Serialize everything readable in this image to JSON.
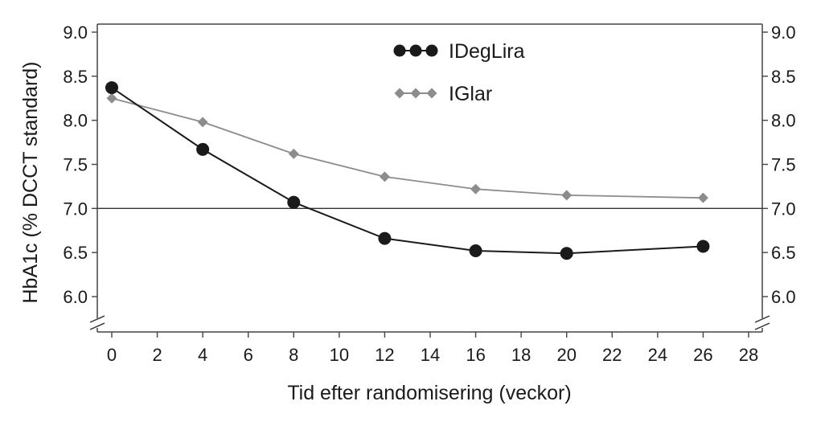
{
  "chart_data": {
    "type": "line",
    "title": "",
    "xlabel": "Tid efter randomisering (veckor)",
    "ylabel": "HbA1c (% DCCT standard)",
    "xlim": [
      0,
      28
    ],
    "ylim": [
      5.5,
      9.0
    ],
    "x_ticks": [
      0,
      2,
      4,
      6,
      8,
      10,
      12,
      14,
      16,
      18,
      20,
      22,
      24,
      26,
      28
    ],
    "x_tick_labels": [
      "0",
      "2",
      "4",
      "6",
      "8",
      "10",
      "12",
      "14",
      "16",
      "18",
      "20",
      "22",
      "24",
      "26",
      "28"
    ],
    "y_ticks": [
      6.0,
      6.5,
      7.0,
      7.5,
      8.0,
      8.5,
      9.0
    ],
    "y_tick_labels": [
      "6.0",
      "6.5",
      "7.0",
      "7.5",
      "8.0",
      "8.5",
      "9.0"
    ],
    "y_axis_break": true,
    "reference_line": 7.0,
    "legend_position": "top-center",
    "series": [
      {
        "name": "IDegLira",
        "marker": "circle",
        "color": "#1a1a1a",
        "x": [
          0,
          4,
          8,
          12,
          16,
          20,
          26
        ],
        "values": [
          8.37,
          7.67,
          7.07,
          6.66,
          6.52,
          6.49,
          6.57
        ]
      },
      {
        "name": "IGlar",
        "marker": "diamond",
        "color": "#8c8c8c",
        "x": [
          0,
          4,
          8,
          12,
          16,
          20,
          26
        ],
        "values": [
          8.25,
          7.98,
          7.62,
          7.36,
          7.22,
          7.15,
          7.12
        ]
      }
    ]
  }
}
